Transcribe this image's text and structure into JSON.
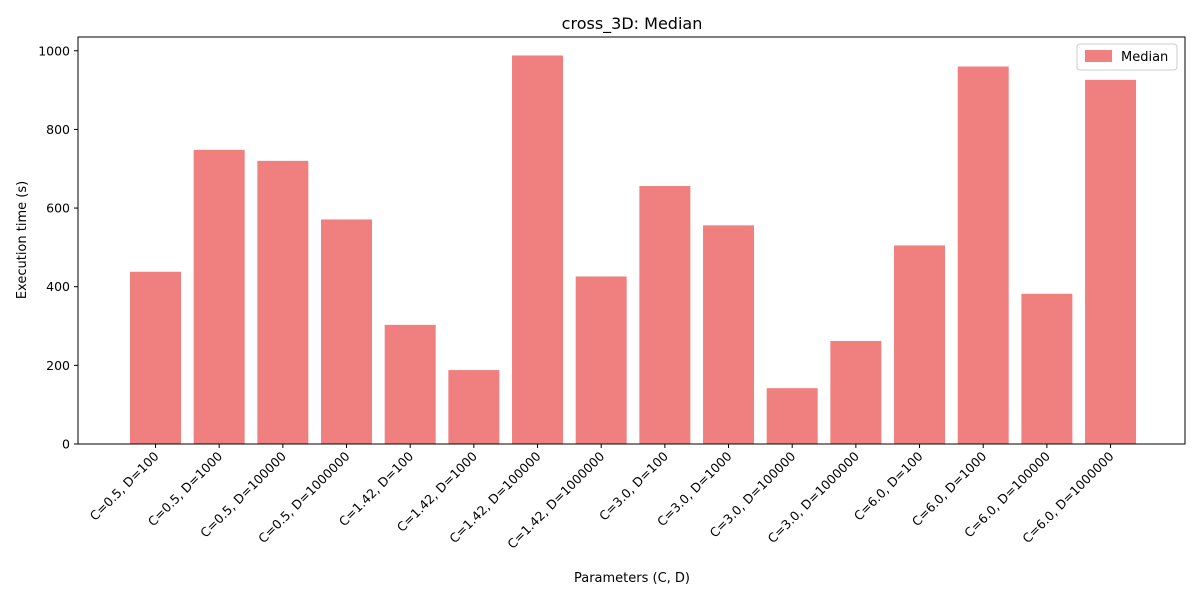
{
  "chart_data": {
    "type": "bar",
    "title": "cross_3D: Median",
    "xlabel": "Parameters (C, D)",
    "ylabel": "Execution time (s)",
    "ylim": [
      0,
      1035
    ],
    "yticks": [
      0,
      200,
      400,
      600,
      800,
      1000
    ],
    "grid": false,
    "legend_position": "top-right",
    "categories": [
      "C=0.5, D=100",
      "C=0.5, D=1000",
      "C=0.5, D=100000",
      "C=0.5, D=1000000",
      "C=1.42, D=100",
      "C=1.42, D=1000",
      "C=1.42, D=100000",
      "C=1.42, D=1000000",
      "C=3.0, D=100",
      "C=3.0, D=1000",
      "C=3.0, D=100000",
      "C=3.0, D=1000000",
      "C=6.0, D=100",
      "C=6.0, D=1000",
      "C=6.0, D=100000",
      "C=6.0, D=1000000"
    ],
    "series": [
      {
        "name": "Median",
        "color": "#f08080",
        "values": [
          438,
          748,
          720,
          571,
          303,
          188,
          988,
          426,
          656,
          556,
          142,
          262,
          505,
          960,
          382,
          926
        ]
      }
    ]
  }
}
